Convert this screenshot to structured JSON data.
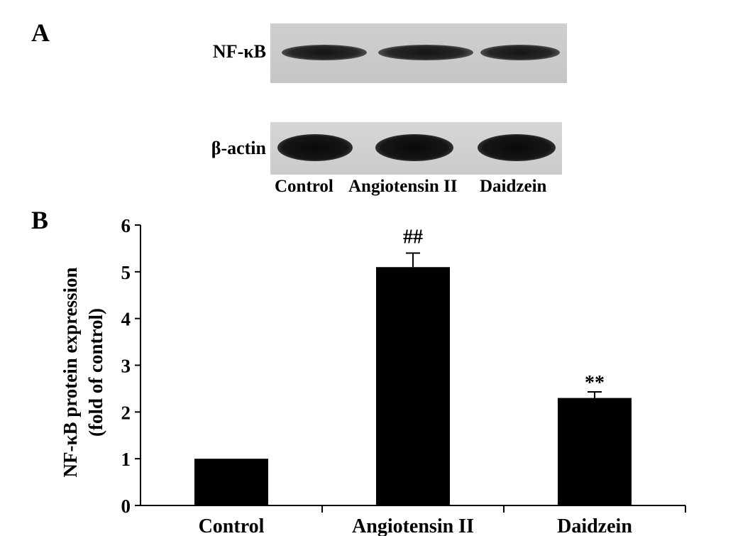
{
  "panels": {
    "a": "A",
    "b": "B"
  },
  "blot": {
    "rows": [
      {
        "label": "NF-κB",
        "intensity": [
          0.8,
          1.0,
          0.75
        ]
      },
      {
        "label": "β-actin",
        "intensity": [
          1.0,
          1.0,
          1.0
        ]
      }
    ],
    "lanes": [
      "Control",
      "Angiotensin II",
      "Daidzein"
    ]
  },
  "chart_data": {
    "type": "bar",
    "categories": [
      "Control",
      "Angiotensin II",
      "Daidzein"
    ],
    "values": [
      1.0,
      5.1,
      2.3
    ],
    "errors": [
      0,
      0.3,
      0.13
    ],
    "annotations": [
      "",
      "##",
      "**"
    ],
    "title": "",
    "xlabel": "",
    "ylabel": [
      "NF-κB protein expression",
      "(fold of control)"
    ],
    "ylim": [
      0,
      6
    ],
    "yticks": [
      0,
      1,
      2,
      3,
      4,
      5,
      6
    ],
    "bar_color": "#000000",
    "grid": false
  }
}
